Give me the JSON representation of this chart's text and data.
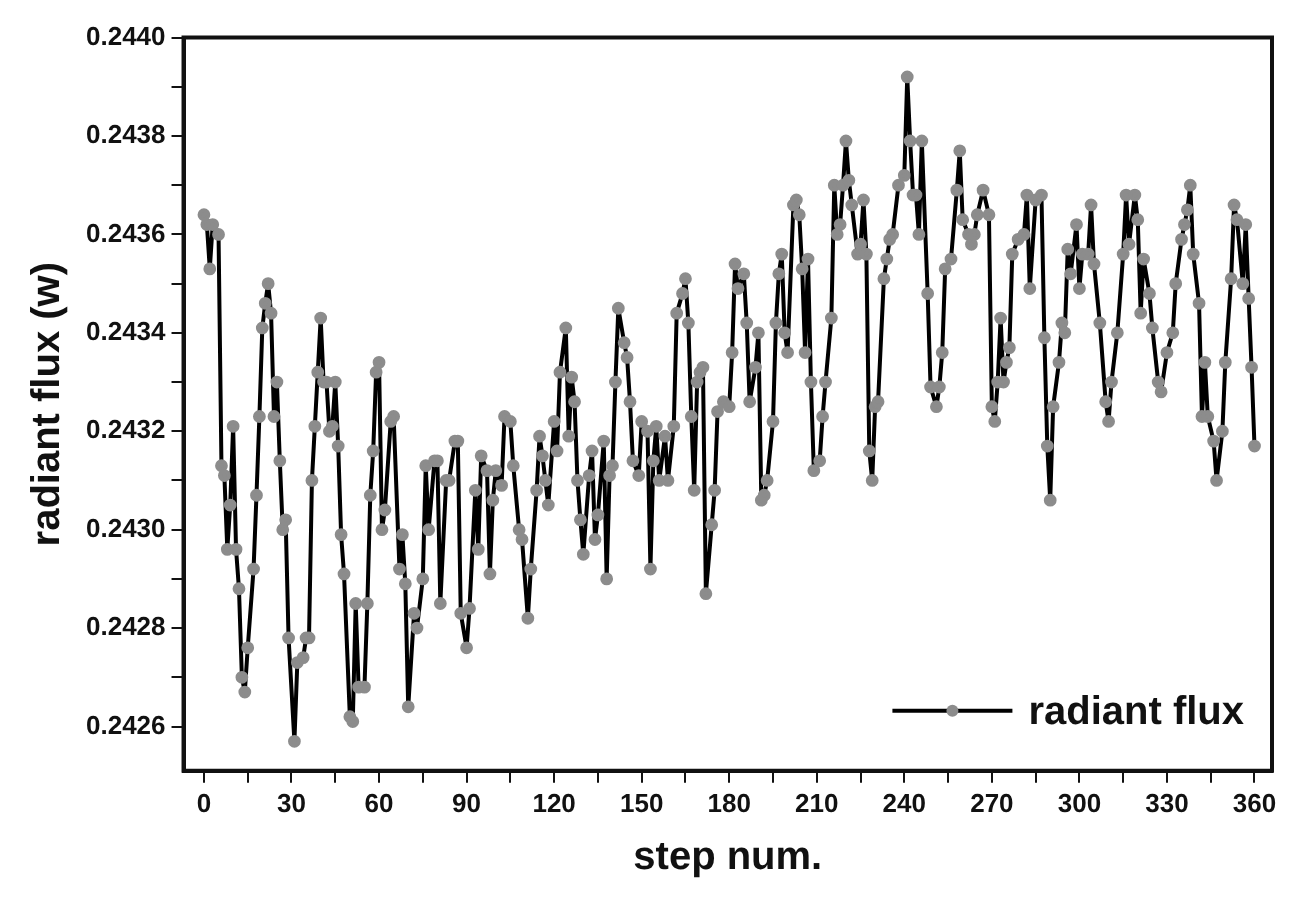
{
  "chart_data": {
    "type": "line",
    "xlabel": "step num.",
    "ylabel": "radiant flux (w)",
    "marker": "circle",
    "line_style": "solid",
    "legend": "bottom right",
    "grid": false,
    "xlim": [
      -7,
      366
    ],
    "xticks": [
      0,
      {
        "value": 15,
        "label": null
      },
      30,
      {
        "value": 45,
        "label": null
      },
      60,
      {
        "value": 75,
        "label": null
      },
      90,
      {
        "value": 105,
        "label": null
      },
      120,
      {
        "value": 135,
        "label": null
      },
      150,
      {
        "value": 165,
        "label": null
      },
      180,
      {
        "value": 195,
        "label": null
      },
      210,
      {
        "value": 225,
        "label": null
      },
      240,
      {
        "value": 255,
        "label": null
      },
      270,
      {
        "value": 285,
        "label": null
      },
      300,
      {
        "value": 315,
        "label": null
      },
      330,
      {
        "value": 345,
        "label": null
      },
      360
    ],
    "ylim": [
      0.24251,
      0.244
    ],
    "yticks": [
      0.2426,
      {
        "value": 0.2427,
        "label": null
      },
      0.2428,
      {
        "value": 0.2429,
        "label": null
      },
      {
        "value": 0.243,
        "label": "0.2430"
      },
      {
        "value": 0.2431,
        "label": null
      },
      0.2432,
      {
        "value": 0.2433,
        "label": null
      },
      0.2434,
      {
        "value": 0.2435,
        "label": null
      },
      0.2436,
      {
        "value": 0.2437,
        "label": null
      },
      0.2438,
      {
        "value": 0.2439,
        "label": null
      },
      {
        "value": 0.244,
        "label": "0.2440"
      }
    ],
    "series": [
      {
        "name": "radiant flux",
        "color": "#000000",
        "x": [
          0,
          1,
          2,
          3,
          5,
          6,
          7,
          8,
          9,
          10,
          11,
          12,
          13,
          14,
          15,
          17,
          18,
          19,
          20,
          21,
          22,
          23,
          24,
          25,
          26,
          27,
          28,
          29,
          31,
          32,
          34,
          35,
          36,
          37,
          38,
          39,
          40,
          41,
          42,
          43,
          44,
          45,
          46,
          47,
          48,
          50,
          51,
          52,
          53,
          55,
          56,
          57,
          58,
          59,
          60,
          61,
          62,
          64,
          65,
          67,
          68,
          69,
          70,
          72,
          73,
          75,
          76,
          77,
          79,
          80,
          81,
          83,
          84,
          86,
          87,
          88,
          90,
          91,
          93,
          94,
          95,
          97,
          98,
          99,
          100,
          102,
          103,
          105,
          106,
          108,
          109,
          111,
          112,
          114,
          115,
          116,
          117,
          118,
          120,
          121,
          122,
          124,
          125,
          126,
          127,
          128,
          129,
          130,
          132,
          133,
          134,
          135,
          137,
          138,
          139,
          140,
          141,
          142,
          144,
          145,
          146,
          147,
          149,
          150,
          152,
          153,
          154,
          155,
          156,
          158,
          159,
          161,
          162,
          164,
          165,
          166,
          167,
          168,
          169,
          170,
          171,
          172,
          174,
          175,
          176,
          178,
          180,
          181,
          182,
          183,
          185,
          186,
          187,
          189,
          190,
          191,
          192,
          193,
          195,
          196,
          197,
          198,
          199,
          200,
          202,
          203,
          204,
          205,
          206,
          207,
          208,
          209,
          211,
          212,
          213,
          215,
          216,
          217,
          218,
          219,
          220,
          221,
          222,
          224,
          225,
          226,
          227,
          228,
          229,
          230,
          231,
          233,
          234,
          235,
          236,
          238,
          240,
          241,
          242,
          243,
          244,
          245,
          246,
          248,
          249,
          251,
          252,
          253,
          254,
          256,
          258,
          259,
          260,
          262,
          263,
          264,
          265,
          267,
          269,
          270,
          271,
          272,
          273,
          274,
          275,
          276,
          277,
          279,
          281,
          282,
          283,
          285,
          287,
          288,
          289,
          290,
          291,
          293,
          294,
          295,
          296,
          297,
          299,
          300,
          301,
          303,
          304,
          305,
          307,
          309,
          310,
          311,
          313,
          315,
          316,
          317,
          319,
          320,
          321,
          322,
          324,
          325,
          327,
          328,
          330,
          332,
          333,
          335,
          336,
          337,
          338,
          339,
          341,
          342,
          343,
          344,
          346,
          347,
          349,
          350,
          352,
          353,
          354,
          356,
          357,
          358,
          359,
          360
        ],
        "values": [
          0.24364,
          0.24362,
          0.24353,
          0.24362,
          0.2436,
          0.24313,
          0.24311,
          0.24296,
          0.24305,
          0.24321,
          0.24296,
          0.24288,
          0.2427,
          0.24267,
          0.24276,
          0.24292,
          0.24307,
          0.24323,
          0.24341,
          0.24346,
          0.2435,
          0.24344,
          0.24323,
          0.2433,
          0.24314,
          0.243,
          0.24302,
          0.24278,
          0.24257,
          0.24273,
          0.24274,
          0.24278,
          0.24278,
          0.2431,
          0.24321,
          0.24332,
          0.24343,
          0.2433,
          0.2433,
          0.2432,
          0.24321,
          0.2433,
          0.24317,
          0.24299,
          0.24291,
          0.24262,
          0.24261,
          0.24285,
          0.24268,
          0.24268,
          0.24285,
          0.24307,
          0.24316,
          0.24332,
          0.24334,
          0.243,
          0.24304,
          0.24322,
          0.24323,
          0.24292,
          0.24299,
          0.24289,
          0.24264,
          0.24283,
          0.2428,
          0.2429,
          0.24313,
          0.243,
          0.24314,
          0.24314,
          0.24285,
          0.2431,
          0.2431,
          0.24318,
          0.24318,
          0.24283,
          0.24276,
          0.24284,
          0.24308,
          0.24296,
          0.24315,
          0.24312,
          0.24291,
          0.24306,
          0.24312,
          0.24309,
          0.24323,
          0.24322,
          0.24313,
          0.243,
          0.24298,
          0.24282,
          0.24292,
          0.24308,
          0.24319,
          0.24315,
          0.2431,
          0.24305,
          0.24322,
          0.24316,
          0.24332,
          0.24341,
          0.24319,
          0.24331,
          0.24326,
          0.2431,
          0.24302,
          0.24295,
          0.24311,
          0.24316,
          0.24298,
          0.24303,
          0.24318,
          0.2429,
          0.24311,
          0.24313,
          0.2433,
          0.24345,
          0.24338,
          0.24335,
          0.24326,
          0.24314,
          0.24311,
          0.24322,
          0.2432,
          0.24292,
          0.24314,
          0.24321,
          0.2431,
          0.24319,
          0.2431,
          0.24321,
          0.24344,
          0.24348,
          0.24351,
          0.24342,
          0.24323,
          0.24308,
          0.2433,
          0.24332,
          0.24333,
          0.24287,
          0.24301,
          0.24308,
          0.24324,
          0.24326,
          0.24325,
          0.24336,
          0.24354,
          0.24349,
          0.24352,
          0.24342,
          0.24326,
          0.24333,
          0.2434,
          0.24306,
          0.24307,
          0.2431,
          0.24322,
          0.24342,
          0.24352,
          0.24356,
          0.2434,
          0.24336,
          0.24366,
          0.24367,
          0.24364,
          0.24353,
          0.24336,
          0.24355,
          0.2433,
          0.24312,
          0.24314,
          0.24323,
          0.2433,
          0.24343,
          0.2437,
          0.2436,
          0.24362,
          0.2437,
          0.24379,
          0.24371,
          0.24366,
          0.24356,
          0.24358,
          0.24367,
          0.24356,
          0.24316,
          0.2431,
          0.24325,
          0.24326,
          0.24351,
          0.24355,
          0.24359,
          0.2436,
          0.2437,
          0.24372,
          0.24392,
          0.24379,
          0.24368,
          0.24368,
          0.2436,
          0.24379,
          0.24348,
          0.24329,
          0.24325,
          0.24329,
          0.24336,
          0.24353,
          0.24355,
          0.24369,
          0.24377,
          0.24363,
          0.2436,
          0.24358,
          0.2436,
          0.24364,
          0.24369,
          0.24364,
          0.24325,
          0.24322,
          0.2433,
          0.24343,
          0.2433,
          0.24334,
          0.24337,
          0.24356,
          0.24359,
          0.2436,
          0.24368,
          0.24349,
          0.24367,
          0.24368,
          0.24339,
          0.24317,
          0.24306,
          0.24325,
          0.24334,
          0.24342,
          0.2434,
          0.24357,
          0.24352,
          0.24362,
          0.24349,
          0.24356,
          0.24356,
          0.24366,
          0.24354,
          0.24342,
          0.24326,
          0.24322,
          0.2433,
          0.2434,
          0.24356,
          0.24368,
          0.24358,
          0.24368,
          0.24363,
          0.24344,
          0.24355,
          0.24348,
          0.24341,
          0.2433,
          0.24328,
          0.24336,
          0.2434,
          0.2435,
          0.24359,
          0.24362,
          0.24365,
          0.2437,
          0.24356,
          0.24346,
          0.24323,
          0.24334,
          0.24323,
          0.24318,
          0.2431,
          0.2432,
          0.24334,
          0.24351,
          0.24366,
          0.24363,
          0.2435,
          0.24362,
          0.24347,
          0.24333,
          0.24317
        ]
      }
    ]
  }
}
